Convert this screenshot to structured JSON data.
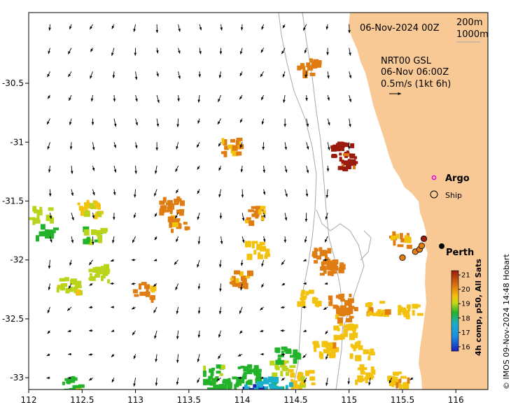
{
  "title": {
    "date": "06-Nov-2024 00Z",
    "isobath_1": "200m",
    "isobath_2": "1000m"
  },
  "current_legend": {
    "source": "NRT00 GSL",
    "time": "06-Nov 06:00Z",
    "scale": "0.5m/s (1kt 6h)"
  },
  "legend": {
    "argo": "Argo",
    "ship": "Ship"
  },
  "places": [
    {
      "name": "Perth",
      "lon": 115.86,
      "lat": -31.95
    }
  ],
  "axes": {
    "x_ticks": [
      "112",
      "112.5",
      "113",
      "113.5",
      "114",
      "114.5",
      "115",
      "115.5",
      "116"
    ],
    "y_ticks": [
      "-30.5",
      "-31",
      "-31.5",
      "-32",
      "-32.5",
      "-33"
    ],
    "x_values": [
      112,
      112.5,
      113,
      113.5,
      114,
      114.5,
      115,
      115.5,
      116
    ],
    "y_values": [
      -30.5,
      -31,
      -31.5,
      -32,
      -32.5,
      -33
    ],
    "xlim": [
      112,
      116.3
    ],
    "ylim": [
      -33.1,
      -29.9
    ]
  },
  "colorbar": {
    "label": "4h comp, p50, All Sats",
    "ticks": [
      "21",
      "20",
      "19",
      "18",
      "17",
      "16"
    ],
    "values": [
      21,
      20,
      19,
      18,
      17,
      16
    ],
    "range": [
      15.7,
      21.3
    ]
  },
  "credit": "© IMOS 09-Nov-2024 14:48 Hobart",
  "colors": {
    "land": "#f9c995",
    "sst_21": "#9a1a0e",
    "sst_20": "#e07d12",
    "sst_19": "#f2c20e",
    "sst_18": "#22b32a",
    "sst_17": "#1ab0cc",
    "sst_16": "#1a20b8",
    "argo": "#e400e4"
  },
  "sst_patches": [
    {
      "lon": 114.92,
      "lat": -31.05,
      "temp": 21.0
    },
    {
      "lon": 114.97,
      "lat": -31.15,
      "temp": 20.9
    },
    {
      "lon": 114.82,
      "lat": -32.05,
      "temp": 20.3
    },
    {
      "lon": 114.75,
      "lat": -31.95,
      "temp": 20.2
    },
    {
      "lon": 114.9,
      "lat": -32.35,
      "temp": 20.2
    },
    {
      "lon": 114.95,
      "lat": -32.45,
      "temp": 20.0
    },
    {
      "lon": 115.25,
      "lat": -32.4,
      "temp": 19.7
    },
    {
      "lon": 115.55,
      "lat": -32.42,
      "temp": 19.3
    },
    {
      "lon": 114.6,
      "lat": -32.3,
      "temp": 19.4
    },
    {
      "lon": 114.75,
      "lat": -32.75,
      "temp": 19.6
    },
    {
      "lon": 114.95,
      "lat": -32.6,
      "temp": 19.5
    },
    {
      "lon": 115.1,
      "lat": -32.75,
      "temp": 19.4
    },
    {
      "lon": 114.55,
      "lat": -33.0,
      "temp": 19.3
    },
    {
      "lon": 114.35,
      "lat": -32.9,
      "temp": 19.0
    },
    {
      "lon": 115.15,
      "lat": -32.95,
      "temp": 19.5
    },
    {
      "lon": 115.45,
      "lat": -33.0,
      "temp": 19.6
    },
    {
      "lon": 113.32,
      "lat": -31.52,
      "temp": 20.1
    },
    {
      "lon": 113.4,
      "lat": -31.68,
      "temp": 20.0
    },
    {
      "lon": 114.1,
      "lat": -31.6,
      "temp": 20.0
    },
    {
      "lon": 113.95,
      "lat": -32.15,
      "temp": 19.9
    },
    {
      "lon": 113.05,
      "lat": -32.25,
      "temp": 20.0
    },
    {
      "lon": 114.6,
      "lat": -30.35,
      "temp": 20.0
    },
    {
      "lon": 113.9,
      "lat": -31.02,
      "temp": 19.8
    },
    {
      "lon": 115.45,
      "lat": -31.82,
      "temp": 19.8
    },
    {
      "lon": 112.15,
      "lat": -31.75,
      "temp": 18.2
    },
    {
      "lon": 112.1,
      "lat": -31.6,
      "temp": 18.8
    },
    {
      "lon": 114.05,
      "lat": -32.95,
      "temp": 18.1
    },
    {
      "lon": 113.95,
      "lat": -33.05,
      "temp": 18.0
    },
    {
      "lon": 114.2,
      "lat": -33.05,
      "temp": 17.3
    },
    {
      "lon": 114.1,
      "lat": -33.1,
      "temp": 16.8
    },
    {
      "lon": 114.35,
      "lat": -33.1,
      "temp": 17.6
    },
    {
      "lon": 112.55,
      "lat": -31.55,
      "temp": 19.2
    },
    {
      "lon": 112.6,
      "lat": -31.78,
      "temp": 18.6
    },
    {
      "lon": 112.65,
      "lat": -32.1,
      "temp": 18.9
    },
    {
      "lon": 112.35,
      "lat": -32.2,
      "temp": 18.9
    },
    {
      "lon": 112.4,
      "lat": -33.05,
      "temp": 18.3
    },
    {
      "lon": 114.12,
      "lat": -31.9,
      "temp": 19.3
    },
    {
      "lon": 113.7,
      "lat": -32.95,
      "temp": 18.5
    },
    {
      "lon": 113.75,
      "lat": -33.05,
      "temp": 18.2
    },
    {
      "lon": 114.4,
      "lat": -32.8,
      "temp": 18.3
    }
  ],
  "ships": [
    {
      "lon": 115.5,
      "lat": -31.98,
      "temp": 20.1
    },
    {
      "lon": 115.62,
      "lat": -31.93,
      "temp": 20.2
    },
    {
      "lon": 115.66,
      "lat": -31.91,
      "temp": 20.3
    },
    {
      "lon": 115.68,
      "lat": -31.88,
      "temp": 20.3
    },
    {
      "lon": 115.7,
      "lat": -31.82,
      "temp": 21.0
    }
  ]
}
